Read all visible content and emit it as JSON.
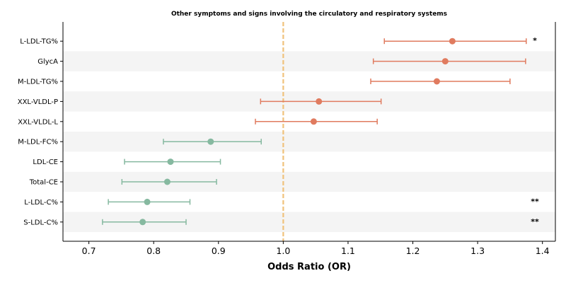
{
  "chart_data": {
    "type": "forest",
    "title": "Other symptoms and signs involving the circulatory and respiratory systems",
    "xlabel": "Odds Ratio (OR)",
    "xlim": [
      0.66,
      1.42
    ],
    "xticks": [
      0.7,
      0.8,
      0.9,
      1.0,
      1.1,
      1.2,
      1.3,
      1.4
    ],
    "xtick_labels": [
      "0.7",
      "0.8",
      "0.9",
      "1.0",
      "1.1",
      "1.2",
      "1.3",
      "1.4"
    ],
    "reference_line": 1.0,
    "colors": {
      "risk": "#e07b5f",
      "protective": "#86b9a0",
      "reference": "#f0c27b",
      "band": "#f4f4f4"
    },
    "rows": [
      {
        "label": "L-LDL-TG%",
        "or": 1.261,
        "lo": 1.156,
        "hi": 1.375,
        "group": "risk",
        "sig": "*"
      },
      {
        "label": "GlycA",
        "or": 1.25,
        "lo": 1.139,
        "hi": 1.374,
        "group": "risk",
        "sig": ""
      },
      {
        "label": "M-LDL-TG%",
        "or": 1.237,
        "lo": 1.135,
        "hi": 1.35,
        "group": "risk",
        "sig": ""
      },
      {
        "label": "XXL-VLDL-P",
        "or": 1.055,
        "lo": 0.965,
        "hi": 1.151,
        "group": "risk",
        "sig": ""
      },
      {
        "label": "XXL-VLDL-L",
        "or": 1.047,
        "lo": 0.957,
        "hi": 1.145,
        "group": "risk",
        "sig": ""
      },
      {
        "label": "M-LDL-FC%",
        "or": 0.888,
        "lo": 0.815,
        "hi": 0.966,
        "group": "protective",
        "sig": ""
      },
      {
        "label": "LDL-CE",
        "or": 0.826,
        "lo": 0.755,
        "hi": 0.903,
        "group": "protective",
        "sig": ""
      },
      {
        "label": "Total-CE",
        "or": 0.821,
        "lo": 0.751,
        "hi": 0.897,
        "group": "protective",
        "sig": ""
      },
      {
        "label": "L-LDL-C%",
        "or": 0.79,
        "lo": 0.73,
        "hi": 0.856,
        "group": "protective",
        "sig": "**"
      },
      {
        "label": "S-LDL-C%",
        "or": 0.783,
        "lo": 0.721,
        "hi": 0.85,
        "group": "protective",
        "sig": "**"
      }
    ]
  }
}
